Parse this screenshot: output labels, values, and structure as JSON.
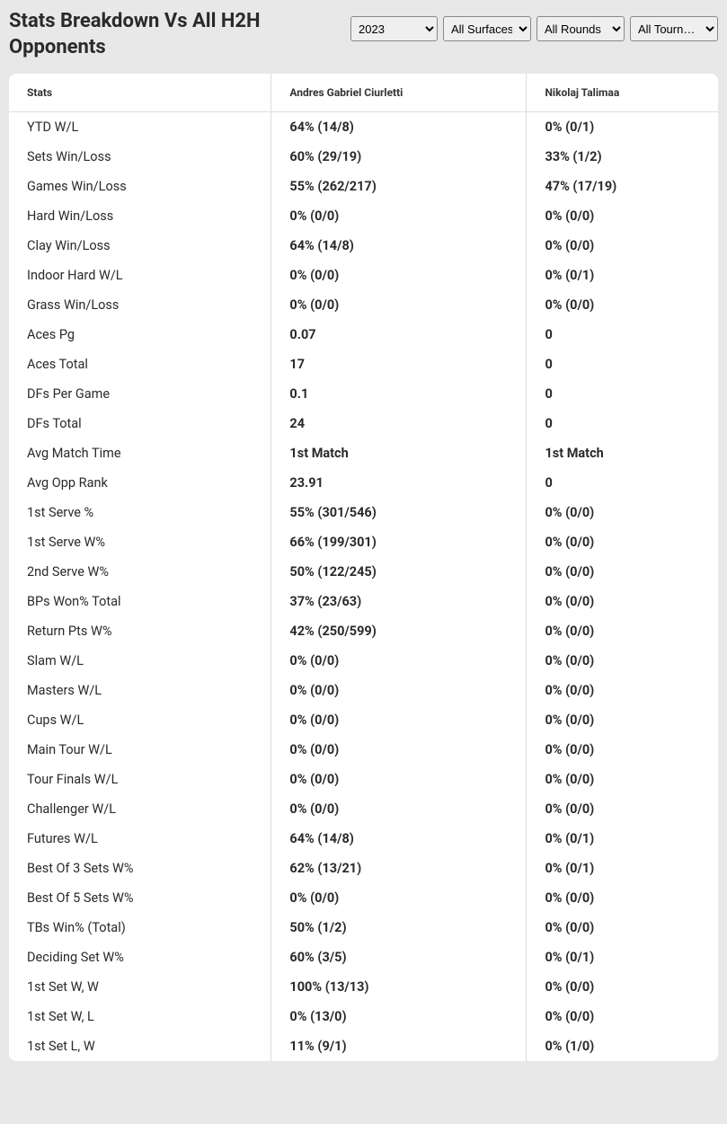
{
  "header": {
    "title": "Stats Breakdown Vs All H2H Opponents"
  },
  "filters": {
    "year": {
      "selected": "2023",
      "options": [
        "2023"
      ]
    },
    "surface": {
      "selected": "All Surfaces",
      "options": [
        "All Surfaces"
      ]
    },
    "round": {
      "selected": "All Rounds",
      "options": [
        "All Rounds"
      ]
    },
    "tournament": {
      "selected": "All Tourn…",
      "options": [
        "All Tourn…"
      ]
    }
  },
  "table": {
    "columns": [
      "Stats",
      "Andres Gabriel Ciurletti",
      "Nikolaj Talimaa"
    ],
    "rows": [
      [
        "YTD W/L",
        "64% (14/8)",
        "0% (0/1)"
      ],
      [
        "Sets Win/Loss",
        "60% (29/19)",
        "33% (1/2)"
      ],
      [
        "Games Win/Loss",
        "55% (262/217)",
        "47% (17/19)"
      ],
      [
        "Hard Win/Loss",
        "0% (0/0)",
        "0% (0/0)"
      ],
      [
        "Clay Win/Loss",
        "64% (14/8)",
        "0% (0/0)"
      ],
      [
        "Indoor Hard W/L",
        "0% (0/0)",
        "0% (0/1)"
      ],
      [
        "Grass Win/Loss",
        "0% (0/0)",
        "0% (0/0)"
      ],
      [
        "Aces Pg",
        "0.07",
        "0"
      ],
      [
        "Aces Total",
        "17",
        "0"
      ],
      [
        "DFs Per Game",
        "0.1",
        "0"
      ],
      [
        "DFs Total",
        "24",
        "0"
      ],
      [
        "Avg Match Time",
        "1st Match",
        "1st Match"
      ],
      [
        "Avg Opp Rank",
        "23.91",
        "0"
      ],
      [
        "1st Serve %",
        "55% (301/546)",
        "0% (0/0)"
      ],
      [
        "1st Serve W%",
        "66% (199/301)",
        "0% (0/0)"
      ],
      [
        "2nd Serve W%",
        "50% (122/245)",
        "0% (0/0)"
      ],
      [
        "BPs Won% Total",
        "37% (23/63)",
        "0% (0/0)"
      ],
      [
        "Return Pts W%",
        "42% (250/599)",
        "0% (0/0)"
      ],
      [
        "Slam W/L",
        "0% (0/0)",
        "0% (0/0)"
      ],
      [
        "Masters W/L",
        "0% (0/0)",
        "0% (0/0)"
      ],
      [
        "Cups W/L",
        "0% (0/0)",
        "0% (0/0)"
      ],
      [
        "Main Tour W/L",
        "0% (0/0)",
        "0% (0/0)"
      ],
      [
        "Tour Finals W/L",
        "0% (0/0)",
        "0% (0/0)"
      ],
      [
        "Challenger W/L",
        "0% (0/0)",
        "0% (0/0)"
      ],
      [
        "Futures W/L",
        "64% (14/8)",
        "0% (0/1)"
      ],
      [
        "Best Of 3 Sets W%",
        "62% (13/21)",
        "0% (0/1)"
      ],
      [
        "Best Of 5 Sets W%",
        "0% (0/0)",
        "0% (0/0)"
      ],
      [
        "TBs Win% (Total)",
        "50% (1/2)",
        "0% (0/0)"
      ],
      [
        "Deciding Set W%",
        "60% (3/5)",
        "0% (0/1)"
      ],
      [
        "1st Set W, W",
        "100% (13/13)",
        "0% (0/0)"
      ],
      [
        "1st Set W, L",
        "0% (13/0)",
        "0% (0/0)"
      ],
      [
        "1st Set L, W",
        "11% (9/1)",
        "0% (1/0)"
      ]
    ]
  },
  "style": {
    "background_color": "#e8e8e8",
    "table_bg": "#ffffff",
    "border_color": "#dddddd",
    "text_color": "#2a2a2a",
    "header_fontsize": 12,
    "body_fontsize": 14.5,
    "title_fontsize": 22
  }
}
